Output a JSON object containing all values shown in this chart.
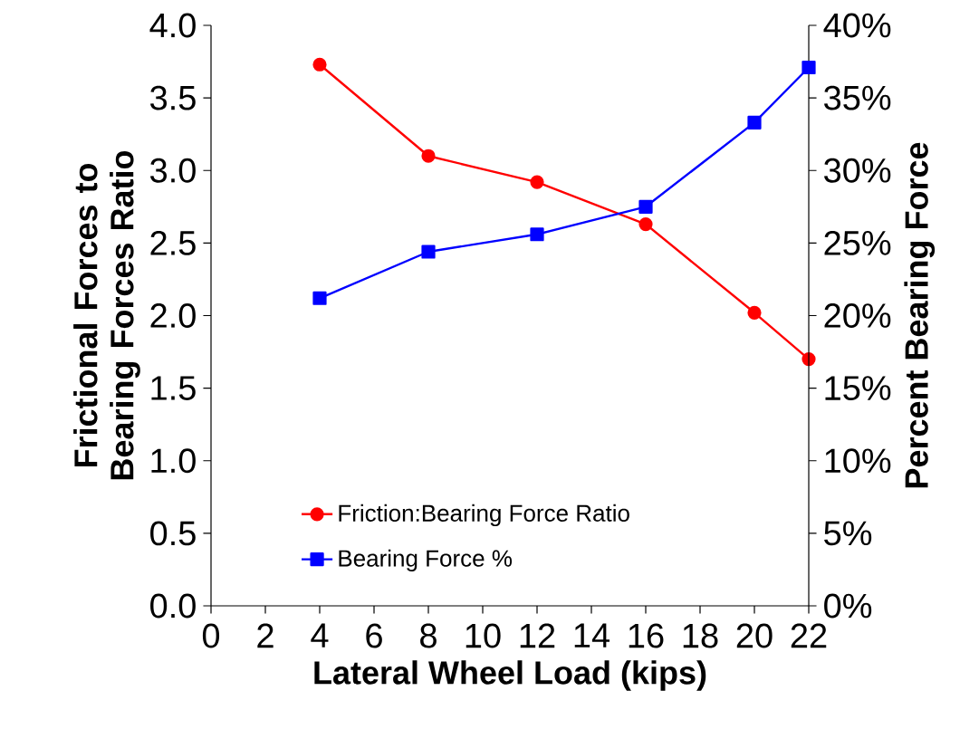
{
  "chart_data": {
    "type": "line",
    "xlabel": "Lateral Wheel Load (kips)",
    "ylabel": "Frictional Forces to Bearing Forces Ratio",
    "y2label": "Percent Bearing Force",
    "x": [
      4,
      8,
      12,
      16,
      20,
      22
    ],
    "series": [
      {
        "name": "Friction:Bearing Force Ratio",
        "color": "#ff0000",
        "marker": "circle",
        "values": [
          3.73,
          3.1,
          2.92,
          2.63,
          2.02,
          1.7
        ]
      },
      {
        "name": "Bearing Force %",
        "color": "#0000ff",
        "marker": "square",
        "axis": "y2",
        "values": [
          21.2,
          24.4,
          25.6,
          27.5,
          33.3,
          37.1
        ]
      }
    ],
    "xlim": [
      0,
      22
    ],
    "xticks": [
      0,
      2,
      4,
      6,
      8,
      10,
      12,
      14,
      16,
      18,
      20,
      22
    ],
    "ylim": [
      0,
      4
    ],
    "yticks": [
      {
        "value": 0,
        "label": "0.0"
      },
      {
        "value": 0.5,
        "label": "0.5"
      },
      {
        "value": 1,
        "label": "1.0"
      },
      {
        "value": 1.5,
        "label": "1.5"
      },
      {
        "value": 2,
        "label": "2.0"
      },
      {
        "value": 2.5,
        "label": "2.5"
      },
      {
        "value": 3,
        "label": "3.0"
      },
      {
        "value": 3.5,
        "label": "3.5"
      },
      {
        "value": 4,
        "label": "4.0"
      }
    ],
    "y2lim": [
      0,
      40
    ],
    "y2ticks": [
      {
        "value": 0,
        "label": "0%"
      },
      {
        "value": 5,
        "label": "5%"
      },
      {
        "value": 10,
        "label": "10%"
      },
      {
        "value": 15,
        "label": "15%"
      },
      {
        "value": 20,
        "label": "20%"
      },
      {
        "value": 25,
        "label": "25%"
      },
      {
        "value": 30,
        "label": "30%"
      },
      {
        "value": 35,
        "label": "35%"
      },
      {
        "value": 40,
        "label": "40%"
      }
    ],
    "legend": "bottom"
  }
}
